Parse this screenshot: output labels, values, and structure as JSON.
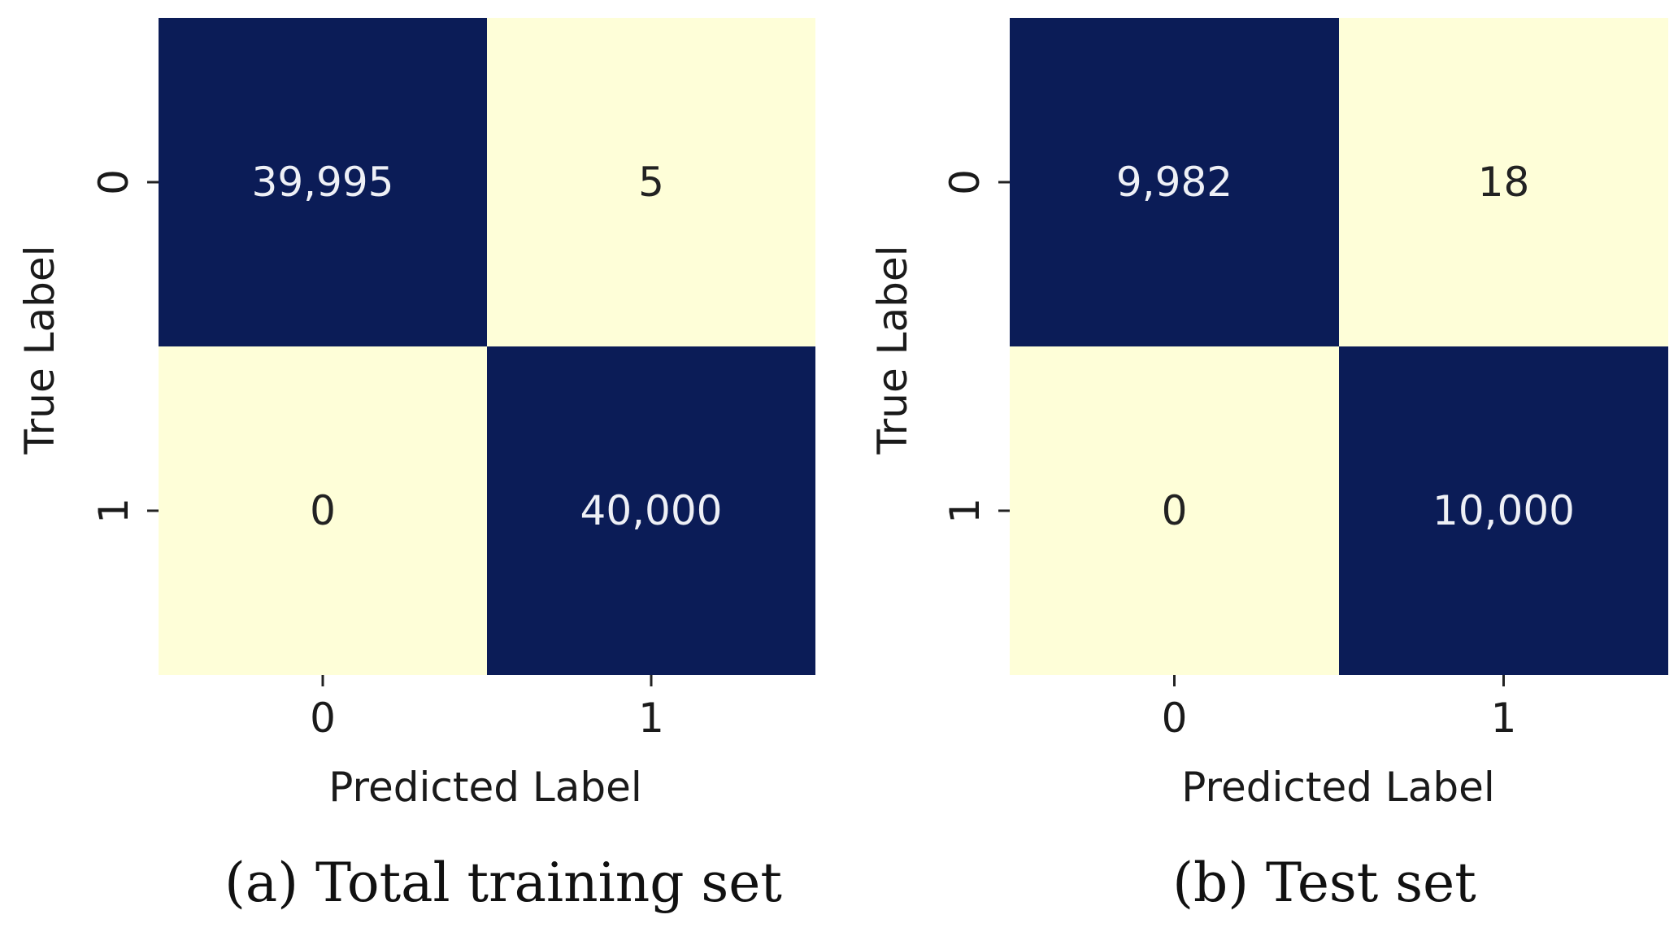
{
  "colors": {
    "high": "#0b1c57",
    "low": "#fefed8",
    "text_on_high": "#eef0f6",
    "text_on_low": "#222222",
    "tick": "#222222"
  },
  "chart_data": [
    {
      "type": "heatmap",
      "caption": "(a) Total training set",
      "xlabel": "Predicted Label",
      "ylabel": "True Label",
      "x_categories": [
        "0",
        "1"
      ],
      "y_categories": [
        "0",
        "1"
      ],
      "values": [
        [
          39995,
          5
        ],
        [
          0,
          40000
        ]
      ],
      "value_labels": [
        [
          "39,995",
          "5"
        ],
        [
          "0",
          "40,000"
        ]
      ],
      "colorbar": false
    },
    {
      "type": "heatmap",
      "caption": "(b) Test set",
      "xlabel": "Predicted Label",
      "ylabel": "True Label",
      "x_categories": [
        "0",
        "1"
      ],
      "y_categories": [
        "0",
        "1"
      ],
      "values": [
        [
          9982,
          18
        ],
        [
          0,
          10000
        ]
      ],
      "value_labels": [
        [
          "9,982",
          "18"
        ],
        [
          "0",
          "10,000"
        ]
      ],
      "colorbar": false
    }
  ]
}
